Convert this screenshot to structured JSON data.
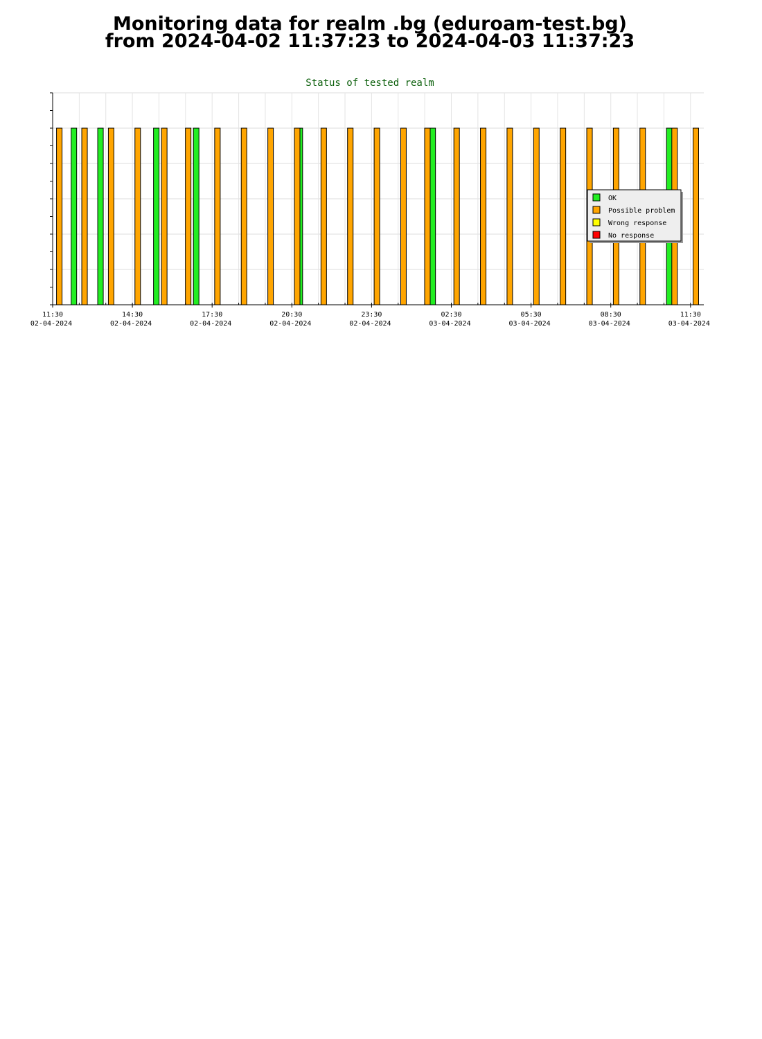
{
  "header": {
    "title_line1": "Monitoring data for realm .bg  (eduroam-test.bg)",
    "title_line2": "from 2024-04-02  11:37:23  to 2024-04-03  11:37:23"
  },
  "chart_data": {
    "type": "bar",
    "title": "Status of tested realm",
    "xlabel": "",
    "ylabel": "",
    "x_ticks": [
      {
        "time": "11:30",
        "date": "02-04-2024"
      },
      {
        "time": "14:30",
        "date": "02-04-2024"
      },
      {
        "time": "17:30",
        "date": "02-04-2024"
      },
      {
        "time": "20:30",
        "date": "02-04-2024"
      },
      {
        "time": "23:30",
        "date": "02-04-2024"
      },
      {
        "time": "02:30",
        "date": "03-04-2024"
      },
      {
        "time": "05:30",
        "date": "03-04-2024"
      },
      {
        "time": "08:30",
        "date": "03-04-2024"
      },
      {
        "time": "11:30",
        "date": "03-04-2024"
      }
    ],
    "x_range_hours": [
      0,
      24.5
    ],
    "ylim": [
      0,
      6
    ],
    "grid": true,
    "legend_position": "right",
    "series": [
      {
        "name": "OK",
        "color": "#22ee22",
        "points": [
          [
            0.8,
            5
          ],
          [
            1.8,
            5
          ],
          [
            3.9,
            5
          ],
          [
            5.4,
            5
          ],
          [
            9.3,
            5
          ],
          [
            14.3,
            5
          ],
          [
            23.2,
            5
          ]
        ]
      },
      {
        "name": "Possible problem",
        "color": "#ffa500",
        "points": [
          [
            0.25,
            5
          ],
          [
            1.2,
            5
          ],
          [
            2.2,
            5
          ],
          [
            3.2,
            5
          ],
          [
            4.2,
            5
          ],
          [
            5.1,
            5
          ],
          [
            6.2,
            5
          ],
          [
            7.2,
            5
          ],
          [
            8.2,
            5
          ],
          [
            9.2,
            5
          ],
          [
            10.2,
            5
          ],
          [
            11.2,
            5
          ],
          [
            12.2,
            5
          ],
          [
            13.2,
            5
          ],
          [
            14.1,
            5
          ],
          [
            15.2,
            5
          ],
          [
            16.2,
            5
          ],
          [
            17.2,
            5
          ],
          [
            18.2,
            5
          ],
          [
            19.2,
            5
          ],
          [
            20.2,
            5
          ],
          [
            21.2,
            5
          ],
          [
            22.2,
            5
          ],
          [
            23.4,
            5
          ],
          [
            24.2,
            5
          ]
        ]
      },
      {
        "name": "Wrong response",
        "color": "#ffff00",
        "points": []
      },
      {
        "name": "No response",
        "color": "#ff0000",
        "points": []
      }
    ]
  }
}
